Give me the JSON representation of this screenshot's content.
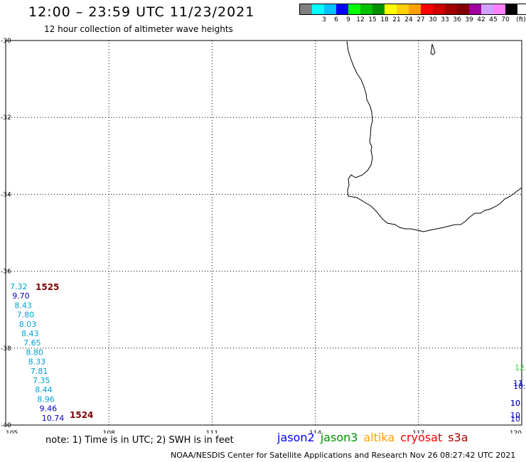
{
  "header": {
    "title": "12:00 – 23:59 UTC 11/23/2021",
    "subtitle": "12 hour collection of altimeter wave heights"
  },
  "legend": {
    "unit": "(ft)",
    "items": [
      {
        "label": "",
        "color": "#808080"
      },
      {
        "label": "3",
        "color": "#00ffff"
      },
      {
        "label": "6",
        "color": "#00c0ff"
      },
      {
        "label": "9",
        "color": "#0000ff"
      },
      {
        "label": "12",
        "color": "#00ff00"
      },
      {
        "label": "15",
        "color": "#00c000"
      },
      {
        "label": "18",
        "color": "#009000"
      },
      {
        "label": "21",
        "color": "#ffff00"
      },
      {
        "label": "24",
        "color": "#ffd000"
      },
      {
        "label": "27",
        "color": "#ffa000"
      },
      {
        "label": "30",
        "color": "#ff0000"
      },
      {
        "label": "33",
        "color": "#d00000"
      },
      {
        "label": "36",
        "color": "#a00000"
      },
      {
        "label": "39",
        "color": "#800000"
      },
      {
        "label": "42",
        "color": "#a000a0"
      },
      {
        "label": "45",
        "color": "#d0a0ff"
      },
      {
        "label": "70",
        "color": "#ff80ff"
      },
      {
        "label": "",
        "color": "#000000"
      }
    ]
  },
  "map": {
    "lon_ticks": [
      "105",
      "108",
      "111",
      "114",
      "117",
      "120"
    ],
    "lat_ticks": [
      "-30",
      "-32",
      "-34",
      "-36",
      "-38",
      "-40"
    ],
    "lon_range": [
      105,
      120
    ],
    "lat_range": [
      -40,
      -30
    ],
    "pass_labels": [
      {
        "text": "1525",
        "color": "#800000"
      },
      {
        "text": "1524",
        "color": "#800000"
      }
    ],
    "track_1": [
      {
        "text": "7.32",
        "color": "#00a0d0"
      },
      {
        "text": "9.70",
        "color": "#0000c0"
      },
      {
        "text": "8.43",
        "color": "#00a0d0"
      },
      {
        "text": "7.80",
        "color": "#00a0d0"
      },
      {
        "text": "8.03",
        "color": "#00a0d0"
      },
      {
        "text": "8.43",
        "color": "#00a0d0"
      },
      {
        "text": "7.65",
        "color": "#00a0d0"
      },
      {
        "text": "8.80",
        "color": "#00a0d0"
      },
      {
        "text": "8.33",
        "color": "#00a0d0"
      },
      {
        "text": "7.81",
        "color": "#00a0d0"
      },
      {
        "text": "7.35",
        "color": "#00a0d0"
      },
      {
        "text": "8.44",
        "color": "#00a0d0"
      },
      {
        "text": "8.96",
        "color": "#00a0d0"
      },
      {
        "text": "9.46",
        "color": "#0000c0"
      },
      {
        "text": "10.74",
        "color": "#0000c0"
      }
    ],
    "edge_values": [
      {
        "text": "12.",
        "color": "#40d040"
      },
      {
        "text": "11.",
        "color": "#0000c0"
      },
      {
        "text": "10.",
        "color": "#0000c0"
      },
      {
        "text": "10.",
        "color": "#0000c0"
      },
      {
        "text": "10.",
        "color": "#0000c0"
      },
      {
        "text": "10.",
        "color": "#0000c0"
      },
      {
        "text": "10.",
        "color": "#0000c0"
      }
    ]
  },
  "note": "note: 1) Time is in UTC; 2) SWH is in feet",
  "satellites": [
    {
      "name": "jason2",
      "color": "#0000ff"
    },
    {
      "name": "jason3",
      "color": "#009000"
    },
    {
      "name": "altika",
      "color": "#ffa000"
    },
    {
      "name": "cryosat",
      "color": "#ff0000"
    },
    {
      "name": "s3a",
      "color": "#a00000"
    }
  ],
  "footer": "NOAA/NESDIS Center for Satellite Applications and Research    Nov 26 08:27:42 UTC 2021"
}
